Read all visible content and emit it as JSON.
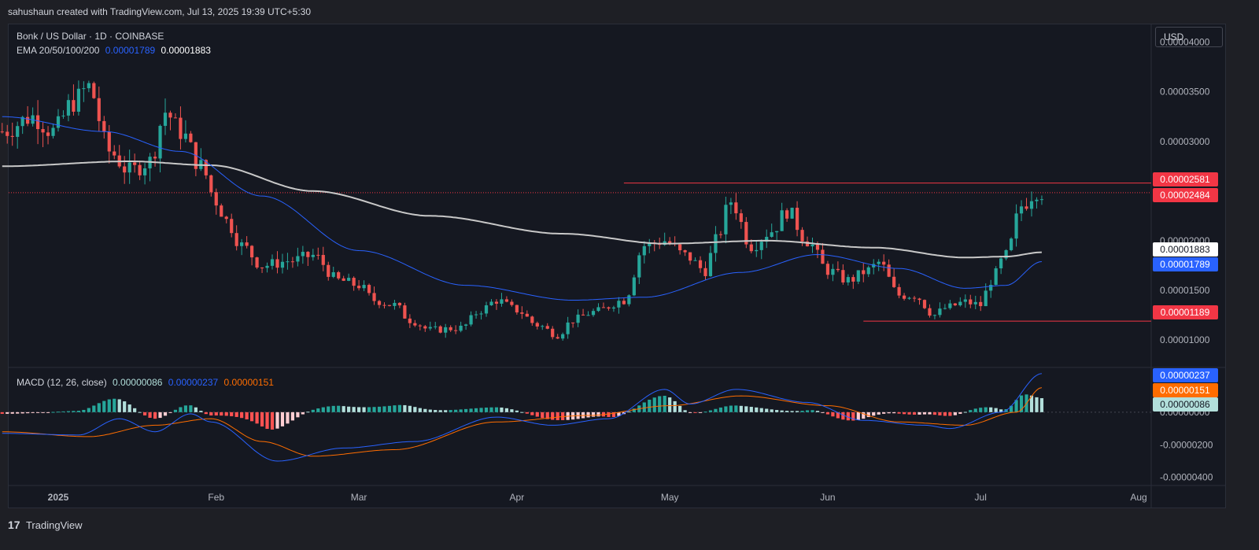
{
  "header": {
    "caption": "sahushaun created with TradingView.com, Jul 13, 2025 19:39 UTC+5:30"
  },
  "footer": {
    "brand": "TradingView",
    "logo_icon": "tradingview-logo-icon"
  },
  "currency_button": "USD",
  "colors": {
    "bg": "#151821",
    "up": "#26a69a",
    "down": "#ef5350",
    "ema_blue": "#2962ff",
    "ema_gray": "#c8c8c8",
    "macd_line": "#2962ff",
    "signal_line": "#ff6d00",
    "level_red": "#f23645"
  },
  "legend": {
    "symbol": "Bonk / US Dollar · 1D · COINBASE",
    "ema_label": "EMA 20/50/100/200",
    "ema_value_1": "0.00001789",
    "ema_value_2": "0.00001883",
    "macd_label": "MACD (12, 26, close)",
    "macd_hist": "0.00000086",
    "macd_value": "0.00000237",
    "macd_signal": "0.00000151"
  },
  "price_axis": {
    "ticks": [
      "0.00004000",
      "0.00003500",
      "0.00003000",
      "0.00002000",
      "0.00001500",
      "0.00001000"
    ],
    "tick_values": [
      4e-05,
      3.5e-05,
      3e-05,
      2e-05,
      1.5e-05,
      1e-05
    ],
    "badges": [
      {
        "label": "0.00002581",
        "value": 2.581e-05,
        "bg": "#f23645",
        "fg": "#ffffff"
      },
      {
        "label": "0.00002484",
        "value": 2.484e-05,
        "bg": "#f23645",
        "fg": "#ffffff"
      },
      {
        "label": "0.00001883",
        "value": 1.883e-05,
        "bg": "#ffffff",
        "fg": "#131722"
      },
      {
        "label": "0.00001789",
        "value": 1.789e-05,
        "bg": "#2962ff",
        "fg": "#ffffff"
      },
      {
        "label": "0.00001189",
        "value": 1.189e-05,
        "bg": "#f23645",
        "fg": "#ffffff"
      }
    ]
  },
  "macd_axis": {
    "ticks": [
      "0.00000000",
      "-0.00000200",
      "-0.00000400"
    ],
    "tick_values": [
      0,
      -2e-06,
      -4e-06
    ],
    "badges": [
      {
        "label": "0.00000237",
        "value": 2.37e-06,
        "bg": "#2962ff",
        "fg": "#ffffff"
      },
      {
        "label": "0.00000151",
        "value": 1.51e-06,
        "bg": "#ff6d00",
        "fg": "#ffffff"
      },
      {
        "label": "0.00000086",
        "value": 8.6e-07,
        "bg": "#b2dfdb",
        "fg": "#131722"
      }
    ]
  },
  "time_axis": {
    "labels": [
      {
        "label": "2025",
        "date": "2025-01-01"
      },
      {
        "label": "Feb",
        "date": "2025-02-01"
      },
      {
        "label": "Mar",
        "date": "2025-03-01"
      },
      {
        "label": "Apr",
        "date": "2025-04-01"
      },
      {
        "label": "May",
        "date": "2025-05-01"
      },
      {
        "label": "Jun",
        "date": "2025-06-01"
      },
      {
        "label": "Jul",
        "date": "2025-07-01"
      },
      {
        "label": "Aug",
        "date": "2025-08-01"
      }
    ]
  },
  "chart_data": {
    "type": "candlestick",
    "symbol": "Bonk / US Dollar · 1D · COINBASE",
    "ylim": [
      7.3e-06,
      4.18e-05
    ],
    "macd_ylim": [
      -4.4e-06,
      2.6e-06
    ],
    "horizontal_levels": [
      {
        "value": 2.581e-05,
        "from": "2025-04-22",
        "to": "2025-08-01"
      },
      {
        "value": 1.189e-05,
        "from": "2025-06-08",
        "to": "2025-08-01"
      }
    ],
    "last_price_line": 2.484e-05,
    "close_anchors": [
      [
        "2024-12-21",
        3.1e-05
      ],
      [
        "2024-12-27",
        3.25e-05
      ],
      [
        "2024-12-31",
        3.1e-05
      ],
      [
        "2025-01-04",
        3.4e-05
      ],
      [
        "2025-01-07",
        3.55e-05
      ],
      [
        "2025-01-11",
        2.9e-05
      ],
      [
        "2025-01-15",
        2.7e-05
      ],
      [
        "2025-01-19",
        2.8e-05
      ],
      [
        "2025-01-22",
        3.3e-05
      ],
      [
        "2025-01-25",
        3.1e-05
      ],
      [
        "2025-01-29",
        2.75e-05
      ],
      [
        "2025-02-01",
        2.4e-05
      ],
      [
        "2025-02-03",
        2.2e-05
      ],
      [
        "2025-02-06",
        1.95e-05
      ],
      [
        "2025-02-10",
        1.75e-05
      ],
      [
        "2025-02-16",
        1.8e-05
      ],
      [
        "2025-02-20",
        1.85e-05
      ],
      [
        "2025-02-25",
        1.6e-05
      ],
      [
        "2025-03-01",
        1.55e-05
      ],
      [
        "2025-03-04",
        1.4e-05
      ],
      [
        "2025-03-08",
        1.35e-05
      ],
      [
        "2025-03-11",
        1.2e-05
      ],
      [
        "2025-03-15",
        1.1e-05
      ],
      [
        "2025-03-21",
        1.12e-05
      ],
      [
        "2025-03-25",
        1.3e-05
      ],
      [
        "2025-03-28",
        1.4e-05
      ],
      [
        "2025-04-01",
        1.3e-05
      ],
      [
        "2025-04-05",
        1.15e-05
      ],
      [
        "2025-04-09",
        1.05e-05
      ],
      [
        "2025-04-12",
        1.2e-05
      ],
      [
        "2025-04-16",
        1.28e-05
      ],
      [
        "2025-04-22",
        1.4e-05
      ],
      [
        "2025-04-26",
        1.95e-05
      ],
      [
        "2025-04-30",
        2e-05
      ],
      [
        "2025-05-04",
        1.85e-05
      ],
      [
        "2025-05-08",
        1.7e-05
      ],
      [
        "2025-05-10",
        2e-05
      ],
      [
        "2025-05-13",
        2.4e-05
      ],
      [
        "2025-05-17",
        1.95e-05
      ],
      [
        "2025-05-21",
        2.1e-05
      ],
      [
        "2025-05-24",
        2.3e-05
      ],
      [
        "2025-05-28",
        2e-05
      ],
      [
        "2025-06-01",
        1.7e-05
      ],
      [
        "2025-06-05",
        1.6e-05
      ],
      [
        "2025-06-09",
        1.7e-05
      ],
      [
        "2025-06-11",
        1.78e-05
      ],
      [
        "2025-06-15",
        1.45e-05
      ],
      [
        "2025-06-18",
        1.45e-05
      ],
      [
        "2025-06-22",
        1.25e-05
      ],
      [
        "2025-06-24",
        1.32e-05
      ],
      [
        "2025-06-28",
        1.38e-05
      ],
      [
        "2025-07-01",
        1.35e-05
      ],
      [
        "2025-07-03",
        1.6e-05
      ],
      [
        "2025-07-06",
        1.85e-05
      ],
      [
        "2025-07-09",
        2.35e-05
      ],
      [
        "2025-07-12",
        2.5e-05
      ],
      [
        "2025-07-13",
        2.484e-05
      ]
    ],
    "ema_20_50": [
      [
        "2024-12-21",
        3.25e-05
      ],
      [
        "2025-01-10",
        3.1e-05
      ],
      [
        "2025-01-25",
        2.9e-05
      ],
      [
        "2025-02-10",
        2.45e-05
      ],
      [
        "2025-03-01",
        1.9e-05
      ],
      [
        "2025-03-22",
        1.55e-05
      ],
      [
        "2025-04-12",
        1.4e-05
      ],
      [
        "2025-04-26",
        1.43e-05
      ],
      [
        "2025-05-15",
        1.68e-05
      ],
      [
        "2025-05-30",
        1.86e-05
      ],
      [
        "2025-06-15",
        1.72e-05
      ],
      [
        "2025-06-28",
        1.52e-05
      ],
      [
        "2025-07-06",
        1.55e-05
      ],
      [
        "2025-07-13",
        1.789e-05
      ]
    ],
    "ema_100_200": [
      [
        "2024-12-21",
        2.75e-05
      ],
      [
        "2025-01-15",
        2.8e-05
      ],
      [
        "2025-01-31",
        2.76e-05
      ],
      [
        "2025-02-20",
        2.5e-05
      ],
      [
        "2025-03-15",
        2.25e-05
      ],
      [
        "2025-04-10",
        2.07e-05
      ],
      [
        "2025-04-30",
        1.97e-05
      ],
      [
        "2025-05-20",
        2e-05
      ],
      [
        "2025-06-10",
        1.93e-05
      ],
      [
        "2025-06-28",
        1.83e-05
      ],
      [
        "2025-07-06",
        1.84e-05
      ],
      [
        "2025-07-13",
        1.883e-05
      ]
    ],
    "macd": [
      [
        "2024-12-21",
        -1.3e-06
      ],
      [
        "2025-01-05",
        -1.4e-06
      ],
      [
        "2025-01-13",
        -4e-07
      ],
      [
        "2025-01-20",
        -1.2e-06
      ],
      [
        "2025-01-27",
        -1e-07
      ],
      [
        "2025-01-31",
        -6e-07
      ],
      [
        "2025-02-13",
        -3e-06
      ],
      [
        "2025-02-26",
        -2.2e-06
      ],
      [
        "2025-03-12",
        -1.8e-06
      ],
      [
        "2025-03-28",
        -3e-07
      ],
      [
        "2025-04-08",
        -8e-07
      ],
      [
        "2025-04-19",
        -4e-07
      ],
      [
        "2025-04-30",
        1.4e-06
      ],
      [
        "2025-05-05",
        5e-07
      ],
      [
        "2025-05-14",
        1.4e-06
      ],
      [
        "2025-05-28",
        6e-07
      ],
      [
        "2025-06-08",
        -5e-07
      ],
      [
        "2025-06-20",
        -8e-07
      ],
      [
        "2025-06-25",
        -1e-06
      ],
      [
        "2025-07-05",
        0.0
      ],
      [
        "2025-07-13",
        2.37e-06
      ]
    ],
    "signal": [
      [
        "2024-12-21",
        -1.2e-06
      ],
      [
        "2025-01-07",
        -1.5e-06
      ],
      [
        "2025-01-20",
        -8e-07
      ],
      [
        "2025-01-31",
        -4e-07
      ],
      [
        "2025-02-10",
        -1.8e-06
      ],
      [
        "2025-02-20",
        -2.7e-06
      ],
      [
        "2025-03-08",
        -2.3e-06
      ],
      [
        "2025-03-28",
        -6e-07
      ],
      [
        "2025-04-15",
        -2e-07
      ],
      [
        "2025-05-01",
        4e-07
      ],
      [
        "2025-05-15",
        1e-06
      ],
      [
        "2025-06-01",
        4e-07
      ],
      [
        "2025-06-15",
        -6e-07
      ],
      [
        "2025-06-28",
        -8e-07
      ],
      [
        "2025-07-08",
        0.0
      ],
      [
        "2025-07-13",
        1.51e-06
      ]
    ]
  }
}
